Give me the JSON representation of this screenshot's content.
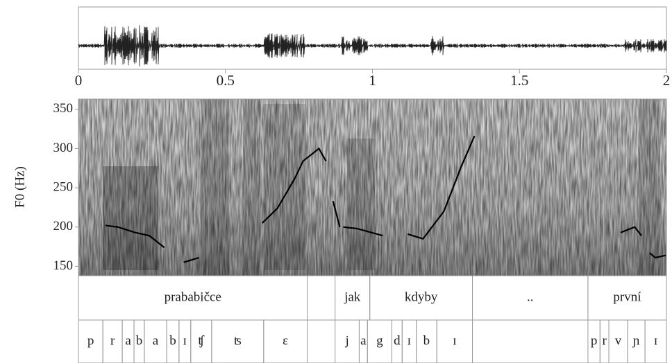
{
  "chart_data": {
    "type": "pitch",
    "y_label": "F0 (Hz)",
    "xlim": [
      0,
      2
    ],
    "xticks": [
      0,
      0.5,
      1,
      1.5,
      2
    ],
    "ylim": [
      138,
      363
    ],
    "yticks": [
      150,
      200,
      250,
      300,
      350
    ],
    "color": "#000000",
    "x": [
      0.092,
      0.134,
      0.193,
      0.241,
      0.292,
      null,
      0.358,
      0.41,
      null,
      0.625,
      0.677,
      0.736,
      0.764,
      0.818,
      0.842,
      null,
      0.866,
      0.889,
      null,
      0.901,
      0.948,
      1.035,
      null,
      1.12,
      1.172,
      1.243,
      1.302,
      1.347,
      null,
      1.844,
      1.892,
      1.915,
      null,
      1.943,
      1.962,
      1.998
    ],
    "values": [
      202,
      200,
      193,
      189,
      174,
      null,
      155,
      161,
      null,
      205,
      224,
      262,
      284,
      300,
      284,
      null,
      233,
      200,
      null,
      200,
      198,
      189,
      null,
      191,
      185,
      220,
      277,
      316,
      null,
      193,
      200,
      189,
      null,
      167,
      161,
      164
    ],
    "words": [
      {
        "text": "prababičce",
        "start": 0,
        "end": 0.778
      },
      {
        "text": "jak",
        "start": 0.873,
        "end": 0.991
      },
      {
        "text": "kdyby",
        "start": 0.991,
        "end": 1.34
      },
      {
        "text": "..",
        "start": 1.34,
        "end": 1.733
      },
      {
        "text": "první",
        "start": 1.733,
        "end": 2
      }
    ],
    "phones": [
      {
        "text": "p",
        "start": 0,
        "end": 0.083
      },
      {
        "text": "r",
        "start": 0.083,
        "end": 0.149
      },
      {
        "text": "a",
        "start": 0.149,
        "end": 0.189
      },
      {
        "text": "b",
        "start": 0.189,
        "end": 0.224
      },
      {
        "text": "a",
        "start": 0.224,
        "end": 0.3
      },
      {
        "text": "b",
        "start": 0.3,
        "end": 0.342
      },
      {
        "text": "ɪ",
        "start": 0.342,
        "end": 0.382
      },
      {
        "text": "ʧ",
        "start": 0.382,
        "end": 0.453
      },
      {
        "text": "ʦ",
        "start": 0.453,
        "end": 0.63
      },
      {
        "text": "ɛ",
        "start": 0.63,
        "end": 0.778
      },
      {
        "text": "j",
        "start": 0.873,
        "end": 0.955
      },
      {
        "text": "a",
        "start": 0.955,
        "end": 0.983
      },
      {
        "text": "g",
        "start": 0.983,
        "end": 1.066
      },
      {
        "text": "d",
        "start": 1.066,
        "end": 1.101
      },
      {
        "text": "ɪ",
        "start": 1.101,
        "end": 1.149
      },
      {
        "text": "b",
        "start": 1.149,
        "end": 1.219
      },
      {
        "text": "ɪ",
        "start": 1.219,
        "end": 1.34
      },
      {
        "text": "p",
        "start": 1.733,
        "end": 1.774
      },
      {
        "text": "r",
        "start": 1.774,
        "end": 1.804
      },
      {
        "text": "v",
        "start": 1.804,
        "end": 1.868
      },
      {
        "text": "ɲ",
        "start": 1.868,
        "end": 1.927
      },
      {
        "text": "ɪ",
        "start": 1.927,
        "end": 2
      }
    ]
  }
}
